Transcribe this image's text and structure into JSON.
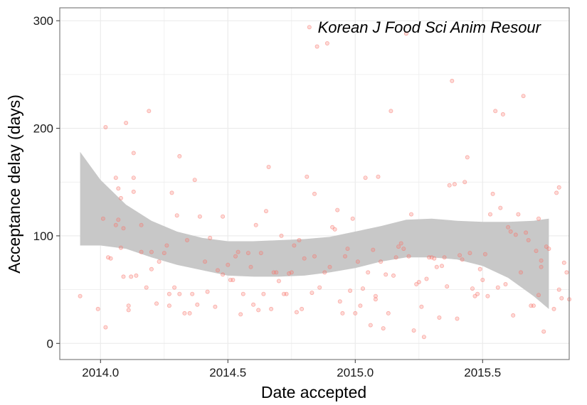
{
  "chart_data": {
    "type": "scatter",
    "title": "",
    "annotation": "Korean J Food Sci Anim Resour",
    "xlabel": "Date accepted",
    "ylabel": "Acceptance delay (days)",
    "xlim": [
      13.84,
      15.84
    ],
    "ylim": [
      -15,
      312
    ],
    "x_ticks": [
      14.0,
      14.5,
      15.0,
      15.5
    ],
    "x_tick_labels": [
      "2014.0",
      "2014.5",
      "2015.0",
      "2015.5"
    ],
    "y_ticks": [
      0,
      100,
      200,
      300
    ],
    "y_tick_labels": [
      "0",
      "100",
      "200",
      "300"
    ],
    "grid": true,
    "legend": "none",
    "colors": {
      "points": "#f8766d",
      "band": "#c8c8c8",
      "grid": "#ebebeb",
      "frame": "#7f7f7f"
    },
    "series": [
      {
        "points": [
          [
            13.92,
            44
          ],
          [
            13.99,
            32
          ],
          [
            14.01,
            116
          ],
          [
            14.02,
            201
          ],
          [
            14.02,
            15
          ],
          [
            14.03,
            80
          ],
          [
            14.04,
            79
          ],
          [
            14.06,
            154
          ],
          [
            14.06,
            110
          ],
          [
            14.07,
            115
          ],
          [
            14.07,
            144
          ],
          [
            14.08,
            89
          ],
          [
            14.08,
            135
          ],
          [
            14.09,
            107
          ],
          [
            14.09,
            62
          ],
          [
            14.1,
            205
          ],
          [
            14.11,
            31
          ],
          [
            14.11,
            35
          ],
          [
            14.12,
            62
          ],
          [
            14.13,
            177
          ],
          [
            14.13,
            141
          ],
          [
            14.13,
            154
          ],
          [
            14.14,
            63
          ],
          [
            14.16,
            110
          ],
          [
            14.16,
            85
          ],
          [
            14.18,
            52
          ],
          [
            14.19,
            216
          ],
          [
            14.2,
            85
          ],
          [
            14.2,
            69
          ],
          [
            14.22,
            37
          ],
          [
            14.23,
            76
          ],
          [
            14.25,
            84
          ],
          [
            14.26,
            91
          ],
          [
            14.27,
            35
          ],
          [
            14.27,
            46
          ],
          [
            14.28,
            140
          ],
          [
            14.29,
            52
          ],
          [
            14.3,
            119
          ],
          [
            14.31,
            174
          ],
          [
            14.31,
            46
          ],
          [
            14.33,
            28
          ],
          [
            14.34,
            96
          ],
          [
            14.35,
            28
          ],
          [
            14.36,
            46
          ],
          [
            14.37,
            152
          ],
          [
            14.38,
            36
          ],
          [
            14.39,
            118
          ],
          [
            14.41,
            76
          ],
          [
            14.42,
            48
          ],
          [
            14.43,
            98
          ],
          [
            14.45,
            34
          ],
          [
            14.46,
            68
          ],
          [
            14.48,
            118
          ],
          [
            14.48,
            64
          ],
          [
            14.5,
            73
          ],
          [
            14.51,
            59
          ],
          [
            14.52,
            59
          ],
          [
            14.53,
            81
          ],
          [
            14.54,
            85
          ],
          [
            14.55,
            27
          ],
          [
            14.56,
            46
          ],
          [
            14.58,
            84
          ],
          [
            14.59,
            71
          ],
          [
            14.6,
            36
          ],
          [
            14.61,
            110
          ],
          [
            14.62,
            31
          ],
          [
            14.63,
            84
          ],
          [
            14.64,
            46
          ],
          [
            14.65,
            123
          ],
          [
            14.66,
            164
          ],
          [
            14.67,
            32
          ],
          [
            14.68,
            66
          ],
          [
            14.69,
            66
          ],
          [
            14.7,
            58
          ],
          [
            14.71,
            100
          ],
          [
            14.72,
            46
          ],
          [
            14.73,
            46
          ],
          [
            14.74,
            65
          ],
          [
            14.75,
            66
          ],
          [
            14.76,
            91
          ],
          [
            14.77,
            29
          ],
          [
            14.78,
            96
          ],
          [
            14.79,
            32
          ],
          [
            14.8,
            79
          ],
          [
            14.81,
            155
          ],
          [
            14.82,
            294
          ],
          [
            14.83,
            47
          ],
          [
            14.84,
            81
          ],
          [
            14.84,
            139
          ],
          [
            14.85,
            276
          ],
          [
            14.86,
            52
          ],
          [
            14.88,
            66
          ],
          [
            14.89,
            279
          ],
          [
            14.9,
            71
          ],
          [
            14.91,
            108
          ],
          [
            14.92,
            106
          ],
          [
            14.93,
            124
          ],
          [
            14.94,
            39
          ],
          [
            14.95,
            28
          ],
          [
            14.96,
            81
          ],
          [
            14.97,
            88
          ],
          [
            14.98,
            49
          ],
          [
            14.99,
            116
          ],
          [
            15.0,
            28
          ],
          [
            15.01,
            76
          ],
          [
            15.02,
            35
          ],
          [
            15.03,
            51
          ],
          [
            15.04,
            154
          ],
          [
            15.05,
            66
          ],
          [
            15.06,
            17
          ],
          [
            15.07,
            87
          ],
          [
            15.08,
            44
          ],
          [
            15.08,
            41
          ],
          [
            15.09,
            155
          ],
          [
            15.1,
            76
          ],
          [
            15.11,
            14
          ],
          [
            15.12,
            64
          ],
          [
            15.13,
            28
          ],
          [
            15.14,
            216
          ],
          [
            15.15,
            63
          ],
          [
            15.16,
            80
          ],
          [
            15.17,
            90
          ],
          [
            15.18,
            93
          ],
          [
            15.19,
            88
          ],
          [
            15.2,
            288
          ],
          [
            15.21,
            81
          ],
          [
            15.22,
            120
          ],
          [
            15.23,
            12
          ],
          [
            15.24,
            55
          ],
          [
            15.25,
            57
          ],
          [
            15.26,
            34
          ],
          [
            15.27,
            6
          ],
          [
            15.28,
            60
          ],
          [
            15.29,
            80
          ],
          [
            15.3,
            80
          ],
          [
            15.31,
            79
          ],
          [
            15.32,
            71
          ],
          [
            15.33,
            24
          ],
          [
            15.34,
            72
          ],
          [
            15.35,
            80
          ],
          [
            15.36,
            53
          ],
          [
            15.37,
            147
          ],
          [
            15.38,
            244
          ],
          [
            15.39,
            148
          ],
          [
            15.4,
            23
          ],
          [
            15.41,
            82
          ],
          [
            15.42,
            78
          ],
          [
            15.43,
            150
          ],
          [
            15.44,
            173
          ],
          [
            15.45,
            84
          ],
          [
            15.46,
            51
          ],
          [
            15.47,
            44
          ],
          [
            15.48,
            46
          ],
          [
            15.49,
            69
          ],
          [
            15.5,
            59
          ],
          [
            15.51,
            83
          ],
          [
            15.52,
            44
          ],
          [
            15.53,
            120
          ],
          [
            15.54,
            139
          ],
          [
            15.55,
            216
          ],
          [
            15.56,
            52
          ],
          [
            15.57,
            126
          ],
          [
            15.58,
            213
          ],
          [
            15.59,
            55
          ],
          [
            15.6,
            108
          ],
          [
            15.61,
            104
          ],
          [
            15.62,
            26
          ],
          [
            15.63,
            101
          ],
          [
            15.64,
            120
          ],
          [
            15.65,
            66
          ],
          [
            15.66,
            230
          ],
          [
            15.67,
            103
          ],
          [
            15.68,
            96
          ],
          [
            15.69,
            35
          ],
          [
            15.7,
            35
          ],
          [
            15.71,
            86
          ],
          [
            15.72,
            116
          ],
          [
            15.72,
            45
          ],
          [
            15.73,
            77
          ],
          [
            15.73,
            71
          ],
          [
            15.74,
            11
          ],
          [
            15.75,
            90
          ],
          [
            15.76,
            88
          ],
          [
            15.78,
            32
          ],
          [
            15.79,
            140
          ],
          [
            15.8,
            50
          ],
          [
            15.8,
            145
          ],
          [
            15.81,
            42
          ],
          [
            15.82,
            75
          ],
          [
            15.83,
            66
          ],
          [
            15.84,
            41
          ]
        ]
      }
    ],
    "smooth": {
      "x": [
        13.92,
        14.0,
        14.1,
        14.2,
        14.3,
        14.4,
        14.5,
        14.6,
        14.7,
        14.8,
        14.9,
        15.0,
        15.1,
        15.2,
        15.3,
        15.4,
        15.5,
        15.6,
        15.7,
        15.76
      ],
      "upper": [
        178,
        152,
        129,
        114,
        104,
        98,
        95,
        95,
        96,
        97,
        99,
        104,
        109,
        115,
        116,
        114,
        113,
        113,
        114,
        116
      ],
      "lower": [
        91,
        91,
        88,
        80,
        73,
        68,
        63,
        62,
        62,
        63,
        66,
        70,
        76,
        80,
        80,
        78,
        72,
        61,
        44,
        32
      ]
    }
  }
}
